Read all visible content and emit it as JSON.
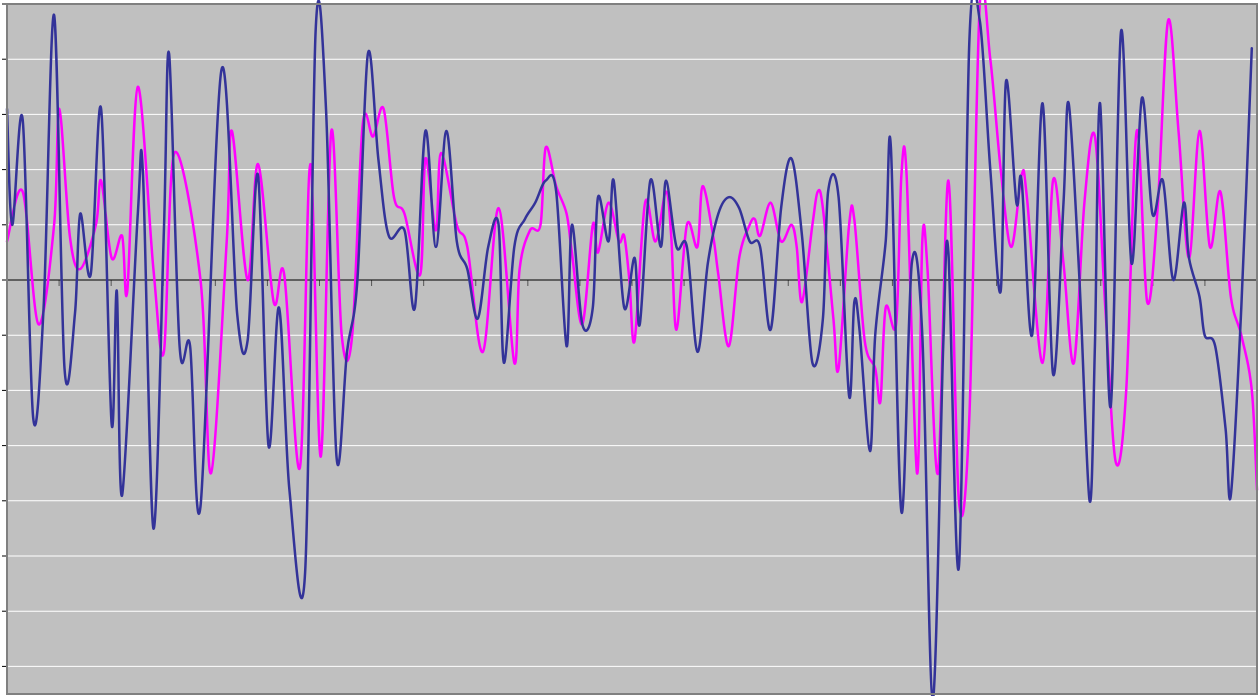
{
  "chart_data": {
    "type": "line",
    "title": "",
    "xlabel": "",
    "ylabel": "",
    "grid": true,
    "legend": "none",
    "colors": {
      "plot_background": "#c0c0c0",
      "frame": "#808080",
      "gridline": "#ffffff",
      "zero_axis": "#000000",
      "series_1": "#ff00ff",
      "series_2": "#333399"
    },
    "ylim": [
      -7.5,
      5
    ],
    "y_gridlines": [
      5,
      4,
      3,
      2,
      1,
      0,
      -1,
      -2,
      -3,
      -4,
      -5,
      -6,
      -7
    ],
    "x_count": 240,
    "x_major_ticks": 24,
    "series": [
      {
        "values": [
          [
            0,
            0.7
          ],
          [
            3,
            1.6
          ],
          [
            6,
            -0.8
          ],
          [
            9,
            1.0
          ],
          [
            10,
            3.1
          ],
          [
            12,
            0.8
          ],
          [
            14,
            0.2
          ],
          [
            17,
            1.0
          ],
          [
            18,
            1.8
          ],
          [
            20,
            0.4
          ],
          [
            22,
            0.8
          ],
          [
            23,
            -0.2
          ],
          [
            25,
            3.5
          ],
          [
            28,
            0.2
          ],
          [
            30,
            -1.3
          ],
          [
            32,
            2.3
          ],
          [
            37,
            0.0
          ],
          [
            39,
            -3.5
          ],
          [
            42,
            0.7
          ],
          [
            43,
            2.7
          ],
          [
            46,
            0.0
          ],
          [
            48,
            2.1
          ],
          [
            51,
            -0.4
          ],
          [
            53,
            0.1
          ],
          [
            56,
            -3.4
          ],
          [
            58,
            2.1
          ],
          [
            60,
            -3.2
          ],
          [
            62,
            2.7
          ],
          [
            64,
            -1.0
          ],
          [
            66,
            -1.0
          ],
          [
            68,
            2.8
          ],
          [
            70,
            2.6
          ],
          [
            72,
            3.1
          ],
          [
            74,
            1.5
          ],
          [
            76,
            1.2
          ],
          [
            79,
            0.1
          ],
          [
            80,
            2.2
          ],
          [
            82,
            0.9
          ],
          [
            83,
            2.3
          ],
          [
            86,
            1.0
          ],
          [
            88,
            0.6
          ],
          [
            91,
            -1.3
          ],
          [
            94,
            1.3
          ],
          [
            97,
            -1.5
          ],
          [
            98,
            0.2
          ],
          [
            100,
            0.9
          ],
          [
            102,
            1.0
          ],
          [
            103,
            2.4
          ],
          [
            105,
            1.7
          ],
          [
            107,
            1.2
          ],
          [
            108,
            0.5
          ],
          [
            110,
            -0.8
          ],
          [
            112,
            1.0
          ],
          [
            113,
            0.5
          ],
          [
            115,
            1.4
          ],
          [
            117,
            0.7
          ],
          [
            118,
            0.8
          ],
          [
            119,
            0.0
          ],
          [
            120,
            -1.1
          ],
          [
            122,
            1.4
          ],
          [
            124,
            0.7
          ],
          [
            126,
            1.6
          ],
          [
            127,
            0.8
          ],
          [
            128,
            -0.9
          ],
          [
            130,
            1.0
          ],
          [
            132,
            0.6
          ],
          [
            133,
            1.7
          ],
          [
            135,
            0.8
          ],
          [
            136,
            0.1
          ],
          [
            138,
            -1.2
          ],
          [
            140,
            0.4
          ],
          [
            142,
            1.0
          ],
          [
            143,
            1.1
          ],
          [
            144,
            0.8
          ],
          [
            146,
            1.4
          ],
          [
            148,
            0.7
          ],
          [
            150,
            1.0
          ],
          [
            151,
            0.6
          ],
          [
            152,
            -0.4
          ],
          [
            154,
            1.0
          ],
          [
            155,
            1.6
          ],
          [
            156,
            1.3
          ],
          [
            158,
            -0.7
          ],
          [
            159,
            -1.6
          ],
          [
            161,
            1.0
          ],
          [
            162,
            1.1
          ],
          [
            164,
            -1.1
          ],
          [
            166,
            -1.6
          ],
          [
            167,
            -2.2
          ],
          [
            168,
            -0.5
          ],
          [
            170,
            -0.8
          ],
          [
            171,
            1.9
          ],
          [
            172,
            1.9
          ],
          [
            174,
            -3.5
          ],
          [
            175,
            0.7
          ],
          [
            176,
            0.2
          ],
          [
            178,
            -3.5
          ],
          [
            180,
            1.8
          ],
          [
            182,
            -4.0
          ],
          [
            184,
            -2.5
          ],
          [
            186,
            5.0
          ],
          [
            188,
            4.0
          ],
          [
            190,
            2.0
          ],
          [
            192,
            0.6
          ],
          [
            194,
            1.9
          ],
          [
            195,
            1.5
          ],
          [
            198,
            -1.5
          ],
          [
            200,
            1.8
          ],
          [
            202,
            0.3
          ],
          [
            204,
            -1.5
          ],
          [
            206,
            1.4
          ],
          [
            208,
            2.6
          ],
          [
            210,
            -0.5
          ],
          [
            212,
            -3.3
          ],
          [
            214,
            -2.0
          ],
          [
            216,
            2.7
          ],
          [
            218,
            -0.4
          ],
          [
            220,
            1.3
          ],
          [
            222,
            4.7
          ],
          [
            224,
            2.7
          ],
          [
            226,
            0.4
          ],
          [
            228,
            2.7
          ],
          [
            230,
            0.6
          ],
          [
            232,
            1.6
          ],
          [
            234,
            -0.3
          ],
          [
            236,
            -1.0
          ],
          [
            238,
            -2.0
          ],
          [
            239,
            -3.8
          ]
        ]
      },
      {
        "values": [
          [
            0,
            3.1
          ],
          [
            1,
            1.0
          ],
          [
            3,
            2.9
          ],
          [
            5,
            -2.5
          ],
          [
            7,
            -0.5
          ],
          [
            9,
            4.8
          ],
          [
            11,
            -1.6
          ],
          [
            13,
            -0.6
          ],
          [
            14,
            1.2
          ],
          [
            16,
            0.1
          ],
          [
            18,
            3.1
          ],
          [
            20,
            -2.6
          ],
          [
            21,
            -0.2
          ],
          [
            22,
            -3.9
          ],
          [
            25,
            1.2
          ],
          [
            26,
            1.9
          ],
          [
            28,
            -4.5
          ],
          [
            30,
            0.9
          ],
          [
            31,
            4.1
          ],
          [
            33,
            -1.2
          ],
          [
            35,
            -1.2
          ],
          [
            37,
            -4.1
          ],
          [
            41,
            3.8
          ],
          [
            44,
            -0.6
          ],
          [
            46,
            -1.1
          ],
          [
            48,
            1.9
          ],
          [
            50,
            -3.0
          ],
          [
            52,
            -0.5
          ],
          [
            54,
            -3.8
          ],
          [
            57,
            -5.3
          ],
          [
            59,
            4.5
          ],
          [
            61,
            3.1
          ],
          [
            63,
            -3.2
          ],
          [
            65,
            -1.3
          ],
          [
            67,
            0.0
          ],
          [
            69,
            4.1
          ],
          [
            71,
            2.2
          ],
          [
            73,
            0.8
          ],
          [
            76,
            0.9
          ],
          [
            78,
            -0.5
          ],
          [
            80,
            2.7
          ],
          [
            82,
            0.6
          ],
          [
            84,
            2.7
          ],
          [
            86,
            0.7
          ],
          [
            88,
            0.2
          ],
          [
            90,
            -0.7
          ],
          [
            92,
            0.6
          ],
          [
            94,
            1.0
          ],
          [
            95,
            -1.5
          ],
          [
            97,
            0.6
          ],
          [
            99,
            1.1
          ],
          [
            101,
            1.4
          ],
          [
            103,
            1.8
          ],
          [
            105,
            1.6
          ],
          [
            107,
            -1.2
          ],
          [
            108,
            1.0
          ],
          [
            110,
            -0.8
          ],
          [
            112,
            -0.5
          ],
          [
            113,
            1.5
          ],
          [
            115,
            0.7
          ],
          [
            116,
            1.8
          ],
          [
            118,
            -0.5
          ],
          [
            120,
            0.4
          ],
          [
            121,
            -0.8
          ],
          [
            123,
            1.8
          ],
          [
            125,
            0.6
          ],
          [
            126,
            1.8
          ],
          [
            128,
            0.6
          ],
          [
            130,
            0.6
          ],
          [
            132,
            -1.3
          ],
          [
            134,
            0.3
          ],
          [
            136,
            1.2
          ],
          [
            138,
            1.5
          ],
          [
            140,
            1.3
          ],
          [
            142,
            0.7
          ],
          [
            144,
            0.6
          ],
          [
            146,
            -0.9
          ],
          [
            148,
            1.3
          ],
          [
            150,
            2.2
          ],
          [
            152,
            0.8
          ],
          [
            154,
            -1.5
          ],
          [
            156,
            -0.7
          ],
          [
            157,
            1.6
          ],
          [
            159,
            1.5
          ],
          [
            161,
            -2.1
          ],
          [
            162,
            -0.4
          ],
          [
            163,
            -0.9
          ],
          [
            165,
            -3.1
          ],
          [
            166,
            -1.0
          ],
          [
            168,
            0.7
          ],
          [
            169,
            2.4
          ],
          [
            171,
            -4.2
          ],
          [
            173,
            0.3
          ],
          [
            175,
            -1.0
          ],
          [
            177,
            -7.6
          ],
          [
            179,
            -1.2
          ],
          [
            180,
            0.5
          ],
          [
            182,
            -5.2
          ],
          [
            184,
            4.3
          ],
          [
            186,
            4.7
          ],
          [
            188,
            2.0
          ],
          [
            190,
            -0.2
          ],
          [
            191,
            3.6
          ],
          [
            193,
            1.4
          ],
          [
            194,
            1.8
          ],
          [
            196,
            -1.0
          ],
          [
            198,
            3.2
          ],
          [
            200,
            -1.7
          ],
          [
            202,
            1.4
          ],
          [
            203,
            3.2
          ],
          [
            205,
            0.1
          ],
          [
            207,
            -4.0
          ],
          [
            208,
            -1.2
          ],
          [
            209,
            3.2
          ],
          [
            211,
            -2.3
          ],
          [
            213,
            4.5
          ],
          [
            215,
            0.3
          ],
          [
            217,
            3.3
          ],
          [
            219,
            1.2
          ],
          [
            221,
            1.8
          ],
          [
            223,
            0.0
          ],
          [
            225,
            1.4
          ],
          [
            226,
            0.4
          ],
          [
            228,
            -0.3
          ],
          [
            229,
            -1.0
          ],
          [
            231,
            -1.2
          ],
          [
            233,
            -2.7
          ],
          [
            234,
            -3.9
          ],
          [
            236,
            -0.5
          ],
          [
            238,
            4.2
          ]
        ]
      }
    ]
  }
}
